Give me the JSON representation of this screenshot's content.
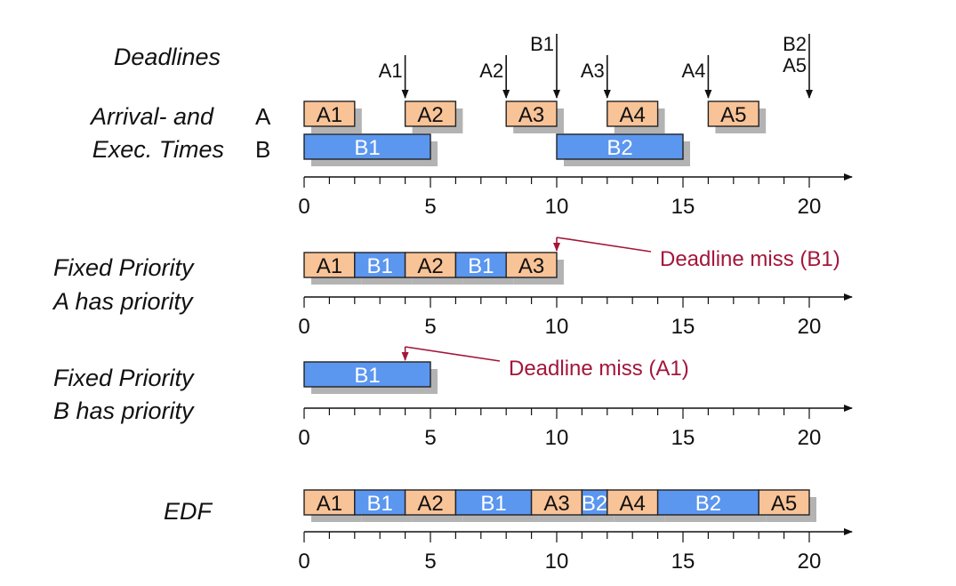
{
  "labels": {
    "deadlines": "Deadlines",
    "arrival_line1": "Arrival- and",
    "arrival_line2": "Exec. Times",
    "row_a": "A",
    "row_b": "B",
    "fpa_line1": "Fixed Priority",
    "fpa_line2": "A has priority",
    "fpb_line1": "Fixed Priority",
    "fpb_line2": "B has priority",
    "edf": "EDF"
  },
  "axis": {
    "min": 0,
    "max": 20,
    "tick_labels": [
      "0",
      "5",
      "10",
      "15",
      "20"
    ]
  },
  "colors": {
    "task_a": "#f9c398",
    "task_b": "#5b96ef",
    "shadow": "#b3b3b3",
    "miss": "#a3163a",
    "ghost": "#c4c4c4"
  },
  "deadlines": [
    {
      "time": 4,
      "labels": [
        "A1"
      ]
    },
    {
      "time": 8,
      "labels": [
        "A2"
      ]
    },
    {
      "time": 10,
      "labels": [
        "B1"
      ]
    },
    {
      "time": 12,
      "labels": [
        "A3"
      ]
    },
    {
      "time": 16,
      "labels": [
        "A4"
      ]
    },
    {
      "time": 20,
      "labels": [
        "B2",
        "A5"
      ]
    }
  ],
  "timelines": [
    {
      "id": "arrival-a",
      "segments": [
        {
          "task": "A",
          "label": "A1",
          "start": 0,
          "end": 2
        },
        {
          "task": "A",
          "label": "A2",
          "start": 4,
          "end": 6
        },
        {
          "task": "A",
          "label": "A3",
          "start": 8,
          "end": 10
        },
        {
          "task": "A",
          "label": "A4",
          "start": 12,
          "end": 14
        },
        {
          "task": "A",
          "label": "A5",
          "start": 16,
          "end": 18
        }
      ]
    },
    {
      "id": "arrival-b",
      "segments": [
        {
          "task": "B",
          "label": "B1",
          "start": 0,
          "end": 5
        },
        {
          "task": "B",
          "label": "B2",
          "start": 10,
          "end": 15
        }
      ]
    },
    {
      "id": "fixed-priority-a",
      "segments": [
        {
          "task": "A",
          "label": "A1",
          "start": 0,
          "end": 2
        },
        {
          "task": "B",
          "label": "B1",
          "start": 2,
          "end": 4
        },
        {
          "task": "A",
          "label": "A2",
          "start": 4,
          "end": 6
        },
        {
          "task": "B",
          "label": "B1",
          "start": 6,
          "end": 8
        },
        {
          "task": "A",
          "label": "A3",
          "start": 8,
          "end": 10
        }
      ]
    },
    {
      "id": "fixed-priority-b",
      "segments": [
        {
          "task": "B",
          "label": "B1",
          "start": 0,
          "end": 5
        }
      ]
    },
    {
      "id": "edf",
      "segments": [
        {
          "task": "A",
          "label": "A1",
          "start": 0,
          "end": 2
        },
        {
          "task": "B",
          "label": "B1",
          "start": 2,
          "end": 4
        },
        {
          "task": "A",
          "label": "A2",
          "start": 4,
          "end": 6
        },
        {
          "task": "B",
          "label": "B1",
          "start": 6,
          "end": 9
        },
        {
          "task": "A",
          "label": "A3",
          "start": 9,
          "end": 11
        },
        {
          "task": "B",
          "label": "B2",
          "start": 11,
          "end": 12
        },
        {
          "task": "A",
          "label": "A4",
          "start": 12,
          "end": 14
        },
        {
          "task": "B",
          "label": "B2",
          "start": 14,
          "end": 18
        },
        {
          "task": "A",
          "label": "A5",
          "start": 18,
          "end": 20
        }
      ]
    }
  ],
  "misses": [
    {
      "timeline": "fixed-priority-a",
      "time": 10,
      "label": "Deadline miss (B1)"
    },
    {
      "timeline": "fixed-priority-b",
      "time": 4,
      "label": "Deadline miss (A1)"
    }
  ]
}
